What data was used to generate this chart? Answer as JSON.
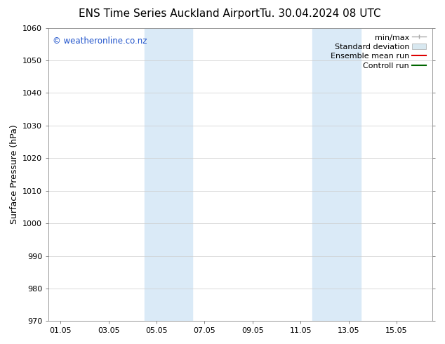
{
  "title": "ENS Time Series Auckland Airport",
  "title_right": "Tu. 30.04.2024 08 UTC",
  "ylabel": "Surface Pressure (hPa)",
  "ylim": [
    970,
    1060
  ],
  "yticks": [
    970,
    980,
    990,
    1000,
    1010,
    1020,
    1030,
    1040,
    1050,
    1060
  ],
  "xtick_labels": [
    "01.05",
    "03.05",
    "05.05",
    "07.05",
    "09.05",
    "11.05",
    "13.05",
    "15.05"
  ],
  "xtick_positions": [
    0,
    2,
    4,
    6,
    8,
    10,
    12,
    14
  ],
  "xlim": [
    -0.5,
    15.5
  ],
  "shaded_bands": [
    {
      "x_start": 3.5,
      "x_end": 5.5,
      "color": "#daeaf7"
    },
    {
      "x_start": 10.5,
      "x_end": 12.5,
      "color": "#daeaf7"
    }
  ],
  "watermark_text": "© weatheronline.co.nz",
  "watermark_color": "#2255cc",
  "background_color": "#ffffff",
  "plot_bg_color": "#ffffff",
  "grid_color": "#cccccc",
  "font_size_title": 11,
  "font_size_axis": 9,
  "font_size_legend": 8,
  "font_size_ticks": 8
}
